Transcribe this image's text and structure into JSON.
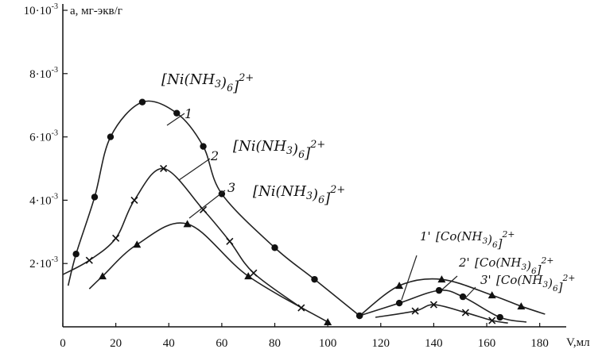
{
  "chart_data": {
    "type": "line",
    "title": "",
    "xlabel": "V,мл",
    "ylabel": "a, мг-экв/г",
    "xlim": [
      0,
      190
    ],
    "ylim": [
      0,
      10.2
    ],
    "x_ticks": [
      0,
      20,
      40,
      60,
      80,
      100,
      120,
      140,
      160,
      180
    ],
    "y_ticks": [
      {
        "value": 2,
        "label": "2·10-3"
      },
      {
        "value": 4,
        "label": "4·10-3"
      },
      {
        "value": 6,
        "label": "6·10-3"
      },
      {
        "value": 8,
        "label": "8·10-3"
      },
      {
        "value": 10,
        "label": "10·10-3"
      }
    ],
    "series": [
      {
        "name": "[Ni(NH3)6]2+",
        "number": "1",
        "marker": "circle",
        "points": [
          [
            5,
            2.3
          ],
          [
            12,
            4.1
          ],
          [
            18,
            6.0
          ],
          [
            30,
            7.1
          ],
          [
            43,
            6.75
          ],
          [
            53,
            5.7
          ],
          [
            60,
            4.2
          ],
          [
            80,
            2.5
          ],
          [
            95,
            1.5
          ],
          [
            112,
            0.35
          ]
        ]
      },
      {
        "name": "[Ni(NH3)6]2+",
        "number": "2",
        "marker": "cross",
        "points": [
          [
            10,
            2.1
          ],
          [
            20,
            2.8
          ],
          [
            27,
            4.0
          ],
          [
            38,
            5.0
          ],
          [
            53,
            3.7
          ],
          [
            63,
            2.7
          ],
          [
            72,
            1.7
          ],
          [
            90,
            0.6
          ]
        ]
      },
      {
        "name": "[Ni(NH3)6]2+",
        "number": "3",
        "marker": "triangle",
        "points": [
          [
            15,
            1.6
          ],
          [
            28,
            2.6
          ],
          [
            47,
            3.25
          ],
          [
            70,
            1.6
          ],
          [
            100,
            0.15
          ]
        ]
      },
      {
        "name": "[Co(NH3)6]2+",
        "number": "1'",
        "marker": "triangle",
        "points": [
          [
            127,
            1.3
          ],
          [
            143,
            1.5
          ],
          [
            162,
            1.0
          ],
          [
            173,
            0.65
          ]
        ]
      },
      {
        "name": "[Co(NH3)6]2+",
        "number": "2'",
        "marker": "circle",
        "points": [
          [
            112,
            0.35
          ],
          [
            127,
            0.75
          ],
          [
            142,
            1.15
          ],
          [
            151,
            0.95
          ],
          [
            165,
            0.3
          ]
        ]
      },
      {
        "name": "[Co(NH3)6]2+",
        "number": "3'",
        "marker": "cross",
        "points": [
          [
            133,
            0.5
          ],
          [
            140,
            0.7
          ],
          [
            152,
            0.45
          ],
          [
            162,
            0.2
          ]
        ]
      }
    ]
  }
}
